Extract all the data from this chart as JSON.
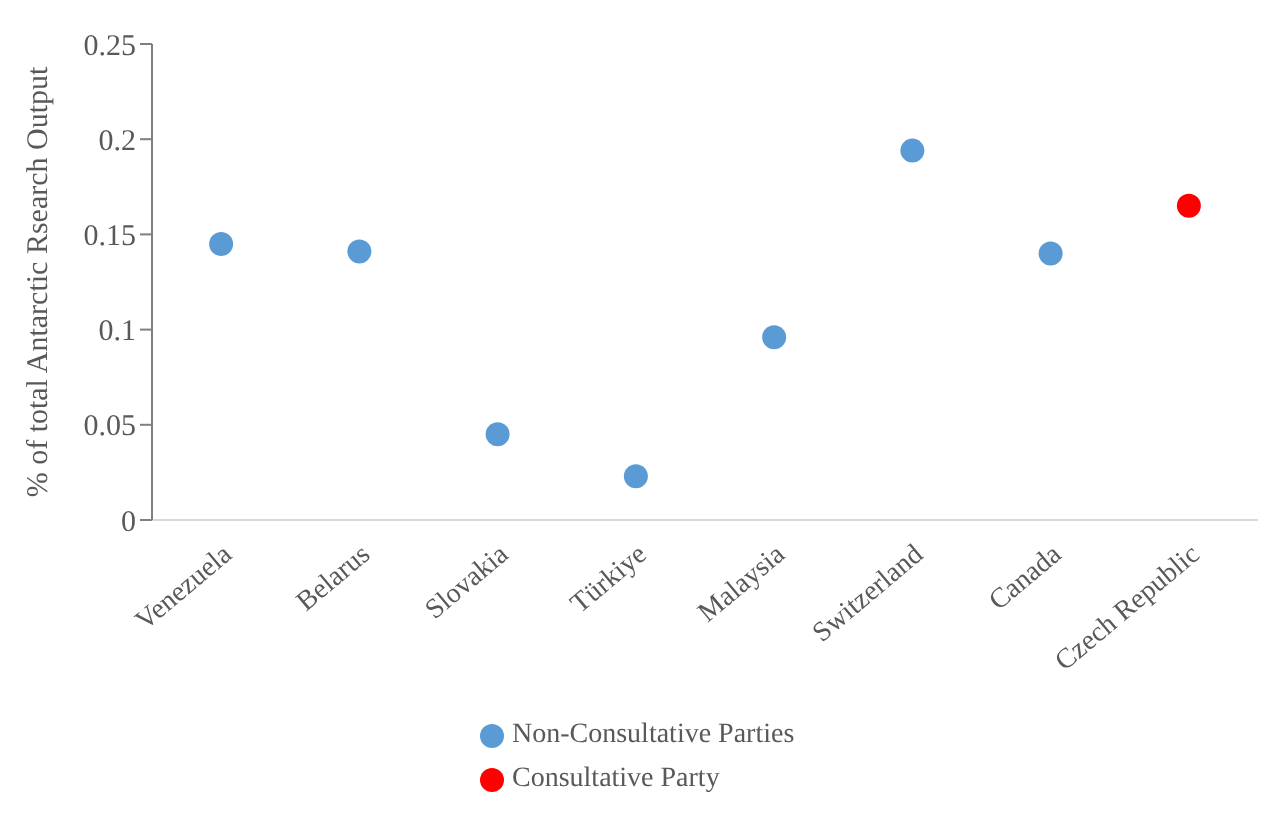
{
  "chart_data": {
    "type": "scatter",
    "ylabel": "% of total Antarctic Rsearch Output",
    "categories": [
      "Venezuela",
      "Belarus",
      "Slovakia",
      "Türkiye",
      "Malaysia",
      "Switzerland",
      "Canada",
      "Czech Republic"
    ],
    "series": [
      {
        "name": "Non-Consultative Parties",
        "color": "#5b9bd5",
        "values": [
          0.145,
          0.141,
          0.045,
          0.023,
          0.096,
          0.194,
          0.14,
          null
        ]
      },
      {
        "name": "Consultative Party",
        "color": "#ff0000",
        "values": [
          null,
          null,
          null,
          null,
          null,
          null,
          null,
          0.165
        ]
      }
    ],
    "ylim": [
      0,
      0.25
    ],
    "yticks": [
      0,
      0.05,
      0.1,
      0.15,
      0.2,
      0.25
    ],
    "grid": false,
    "legend": "bottom",
    "marker": "circle"
  }
}
